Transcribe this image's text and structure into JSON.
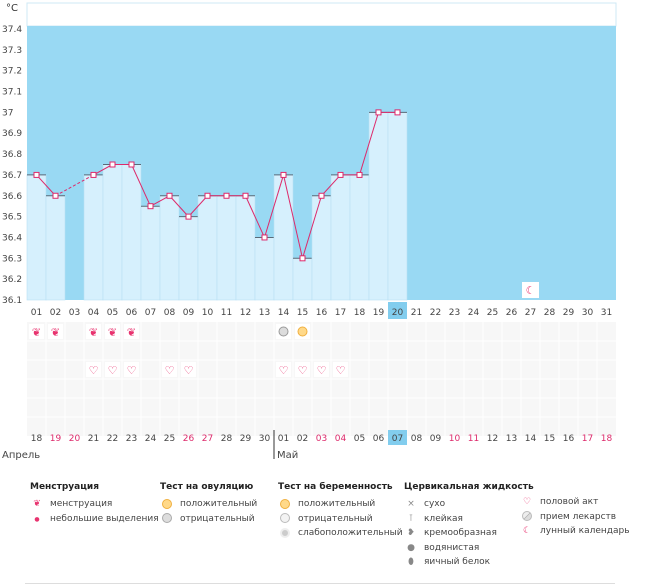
{
  "chart_data": {
    "type": "bar",
    "unit_label": "°C",
    "y_ticks": [
      "37.4",
      "37.3",
      "37.2",
      "37.1",
      "37",
      "36.9",
      "36.8",
      "36.7",
      "36.6",
      "36.5",
      "36.4",
      "36.3",
      "36.2",
      "36.1"
    ],
    "ylim": [
      36.1,
      37.5
    ],
    "x_top_labels": [
      "01",
      "02",
      "03",
      "04",
      "05",
      "06",
      "07",
      "08",
      "09",
      "10",
      "11",
      "12",
      "13",
      "14",
      "15",
      "16",
      "17",
      "18",
      "19",
      "20",
      "21",
      "22",
      "23",
      "24",
      "25",
      "26",
      "27",
      "28",
      "29",
      "30",
      "31"
    ],
    "x_bottom_labels": [
      "18",
      "19",
      "20",
      "21",
      "22",
      "23",
      "24",
      "25",
      "26",
      "27",
      "28",
      "29",
      "30",
      "01",
      "02",
      "03",
      "04",
      "05",
      "06",
      "07",
      "08",
      "09",
      "10",
      "11",
      "12",
      "13",
      "14",
      "15",
      "16",
      "17",
      "18"
    ],
    "x_bottom_weekend": [
      false,
      true,
      true,
      false,
      false,
      false,
      false,
      false,
      true,
      true,
      false,
      false,
      false,
      false,
      false,
      true,
      true,
      false,
      false,
      false,
      false,
      false,
      true,
      true,
      false,
      false,
      false,
      false,
      false,
      true,
      true
    ],
    "current_index": 19,
    "month_labels": [
      {
        "label": "Апрель",
        "start_index": 0
      },
      {
        "label": "Май",
        "start_index": 13
      }
    ],
    "series": [
      {
        "values": [
          36.7,
          36.6,
          36.6,
          36.7,
          36.75,
          36.75,
          36.55,
          36.6,
          36.5,
          36.6,
          36.6,
          36.6,
          36.4,
          36.7,
          36.3,
          36.6,
          36.7,
          36.7,
          37.0,
          37.0,
          null,
          null,
          null,
          null,
          null,
          null,
          null,
          null,
          null,
          null,
          null
        ]
      }
    ],
    "missing_bar_indices": [
      2
    ],
    "dashed_segment": [
      1,
      3
    ],
    "marker_rows": {
      "menstruation": [
        0,
        1,
        3,
        4,
        5
      ],
      "ovulation_test_negative": [
        13
      ],
      "ovulation_test_positive": [
        14
      ],
      "intercourse": [
        3,
        4,
        5,
        7,
        8,
        13,
        14,
        15,
        16
      ],
      "lunar": [
        26
      ]
    },
    "colors": {
      "background": "#99d9f3",
      "bar_fill": "#d6f0fd",
      "line": "#dd2a6b",
      "highlight": "#82cdee"
    }
  },
  "legend": {
    "menstruation": {
      "title": "Менструация",
      "items": [
        "менструация",
        "небольшие выделения"
      ]
    },
    "ovulation_test": {
      "title": "Тест на овуляцию",
      "items": [
        "положительный",
        "отрицательный"
      ]
    },
    "pregnancy_test": {
      "title": "Тест на беременность",
      "items": [
        "положительный",
        "отрицательный",
        "слабоположительный"
      ]
    },
    "cervical": {
      "title": "Цервикальная жидкость",
      "items": [
        "сухо",
        "клейкая",
        "кремообразная",
        "водянистая",
        "яичный белок"
      ]
    },
    "other": {
      "items": [
        "половой акт",
        "прием лекарств",
        "лунный календарь"
      ]
    }
  }
}
